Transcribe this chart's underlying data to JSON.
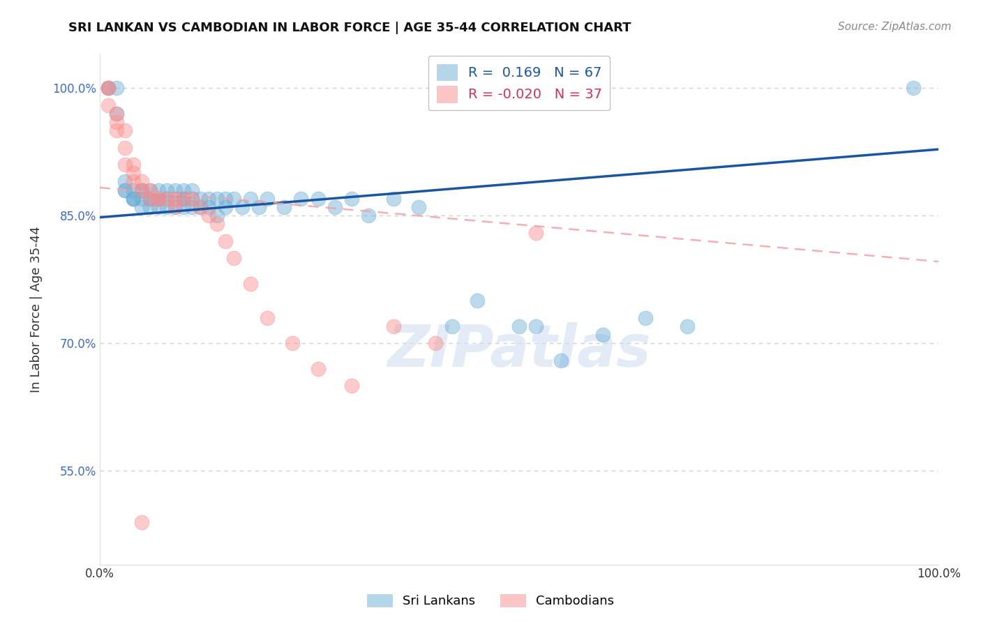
{
  "title": "SRI LANKAN VS CAMBODIAN IN LABOR FORCE | AGE 35-44 CORRELATION CHART",
  "source_text": "Source: ZipAtlas.com",
  "ylabel": "In Labor Force | Age 35-44",
  "xlim": [
    0.0,
    1.0
  ],
  "ylim": [
    0.44,
    1.04
  ],
  "yticks": [
    0.55,
    0.7,
    0.85,
    1.0
  ],
  "ytick_labels": [
    "55.0%",
    "70.0%",
    "85.0%",
    "100.0%"
  ],
  "xticks": [
    0.0,
    0.25,
    0.5,
    0.75,
    1.0
  ],
  "xtick_labels": [
    "0.0%",
    "",
    "",
    "",
    "100.0%"
  ],
  "legend_r1": "R =  0.169   N = 67",
  "legend_r2": "R = -0.020   N = 37",
  "legend_label1": "Sri Lankans",
  "legend_label2": "Cambodians",
  "blue_color": "#6baed6",
  "pink_color": "#fc8d8d",
  "trend_blue": "#1a56a0",
  "trend_pink": "#f4a0a8",
  "watermark": "ZIPatlas",
  "blue_scatter_x": [
    0.01,
    0.01,
    0.02,
    0.02,
    0.03,
    0.03,
    0.03,
    0.04,
    0.04,
    0.04,
    0.04,
    0.05,
    0.05,
    0.05,
    0.05,
    0.06,
    0.06,
    0.06,
    0.06,
    0.07,
    0.07,
    0.07,
    0.07,
    0.07,
    0.08,
    0.08,
    0.08,
    0.09,
    0.09,
    0.09,
    0.1,
    0.1,
    0.1,
    0.1,
    0.11,
    0.11,
    0.11,
    0.12,
    0.12,
    0.13,
    0.13,
    0.14,
    0.14,
    0.15,
    0.15,
    0.16,
    0.17,
    0.18,
    0.19,
    0.2,
    0.22,
    0.24,
    0.26,
    0.28,
    0.3,
    0.32,
    0.35,
    0.38,
    0.42,
    0.45,
    0.5,
    0.52,
    0.55,
    0.6,
    0.65,
    0.7,
    0.97
  ],
  "blue_scatter_y": [
    1.0,
    1.0,
    1.0,
    0.97,
    0.89,
    0.88,
    0.88,
    0.88,
    0.87,
    0.87,
    0.87,
    0.88,
    0.88,
    0.87,
    0.86,
    0.88,
    0.87,
    0.87,
    0.86,
    0.88,
    0.87,
    0.87,
    0.87,
    0.86,
    0.88,
    0.87,
    0.86,
    0.88,
    0.87,
    0.86,
    0.88,
    0.87,
    0.87,
    0.86,
    0.88,
    0.87,
    0.86,
    0.87,
    0.86,
    0.87,
    0.86,
    0.87,
    0.85,
    0.87,
    0.86,
    0.87,
    0.86,
    0.87,
    0.86,
    0.87,
    0.86,
    0.87,
    0.87,
    0.86,
    0.87,
    0.85,
    0.87,
    0.86,
    0.72,
    0.75,
    0.72,
    0.72,
    0.68,
    0.71,
    0.73,
    0.72,
    1.0
  ],
  "pink_scatter_x": [
    0.01,
    0.01,
    0.01,
    0.02,
    0.02,
    0.02,
    0.03,
    0.03,
    0.03,
    0.04,
    0.04,
    0.04,
    0.05,
    0.05,
    0.06,
    0.06,
    0.07,
    0.07,
    0.08,
    0.09,
    0.09,
    0.1,
    0.11,
    0.12,
    0.13,
    0.14,
    0.15,
    0.16,
    0.18,
    0.2,
    0.23,
    0.26,
    0.3,
    0.35,
    0.4,
    0.52,
    0.05
  ],
  "pink_scatter_y": [
    1.0,
    1.0,
    0.98,
    0.97,
    0.96,
    0.95,
    0.95,
    0.93,
    0.91,
    0.91,
    0.9,
    0.89,
    0.89,
    0.88,
    0.88,
    0.87,
    0.87,
    0.87,
    0.87,
    0.87,
    0.86,
    0.87,
    0.87,
    0.86,
    0.85,
    0.84,
    0.82,
    0.8,
    0.77,
    0.73,
    0.7,
    0.67,
    0.65,
    0.72,
    0.7,
    0.83,
    0.49
  ],
  "blue_trend_x0": 0.0,
  "blue_trend_y0": 0.848,
  "blue_trend_x1": 1.0,
  "blue_trend_y1": 0.928,
  "pink_trend_x0": 0.0,
  "pink_trend_y0": 0.883,
  "pink_trend_x1": 1.0,
  "pink_trend_y1": 0.796
}
